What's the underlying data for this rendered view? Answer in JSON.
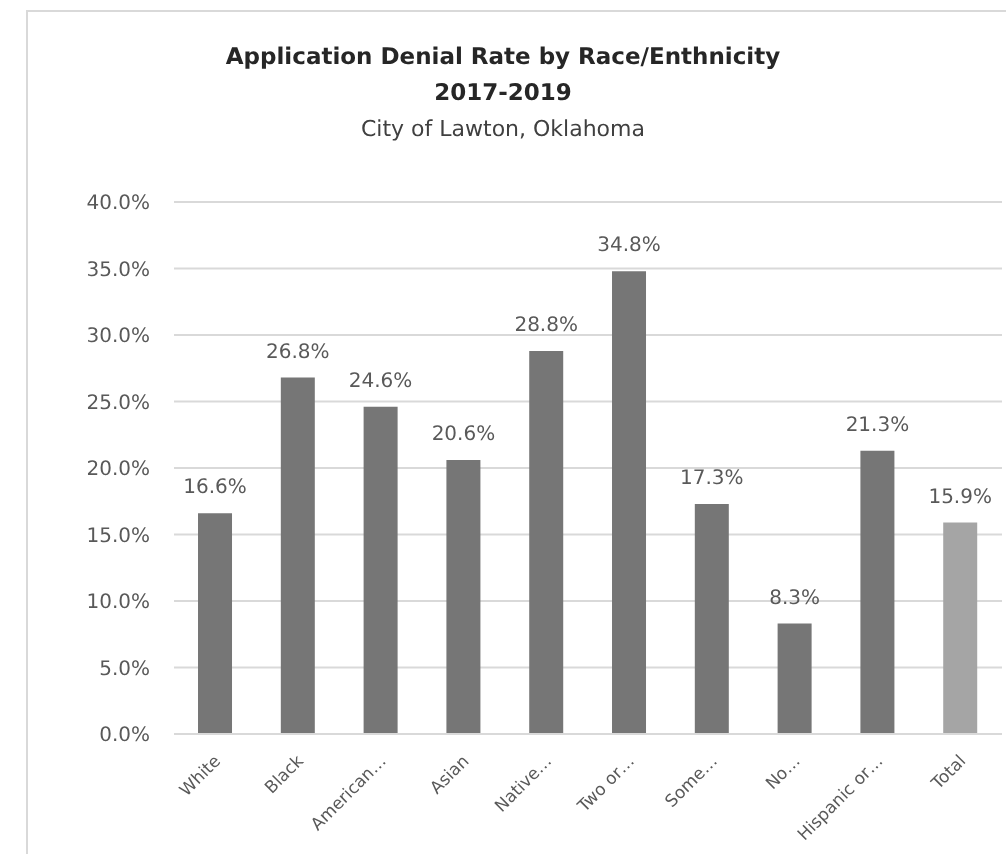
{
  "chart_data": {
    "type": "bar",
    "title": "Application Denial Rate by Race/Enthnicity\n2017-2019",
    "subtitle": "City of Lawton, Oklahoma",
    "categories": [
      "White",
      "Black",
      "American…",
      "Asian",
      "Native…",
      "Two or…",
      "Some…",
      "No…",
      "Hispanic or…",
      "Total"
    ],
    "values": [
      16.6,
      26.8,
      24.6,
      20.6,
      28.8,
      34.8,
      17.3,
      8.3,
      21.3,
      15.9
    ],
    "colors": [
      "#767676",
      "#767676",
      "#767676",
      "#767676",
      "#767676",
      "#767676",
      "#767676",
      "#767676",
      "#767676",
      "#a5a5a5"
    ],
    "value_labels": [
      "16.6%",
      "26.8%",
      "24.6%",
      "20.6%",
      "28.8%",
      "34.8%",
      "17.3%",
      "8.3%",
      "21.3%",
      "15.9%"
    ],
    "ylim": [
      0,
      40
    ],
    "yticks": [
      {
        "value": 0,
        "label": "0.0%"
      },
      {
        "value": 5,
        "label": "5.0%"
      },
      {
        "value": 10,
        "label": "10.0%"
      },
      {
        "value": 15,
        "label": "15.0%"
      },
      {
        "value": 20,
        "label": "20.0%"
      },
      {
        "value": 25,
        "label": "25.0%"
      },
      {
        "value": 30,
        "label": "30.0%"
      },
      {
        "value": 35,
        "label": "35.0%"
      },
      {
        "value": 40,
        "label": "40.0%"
      }
    ],
    "grid": "y"
  }
}
